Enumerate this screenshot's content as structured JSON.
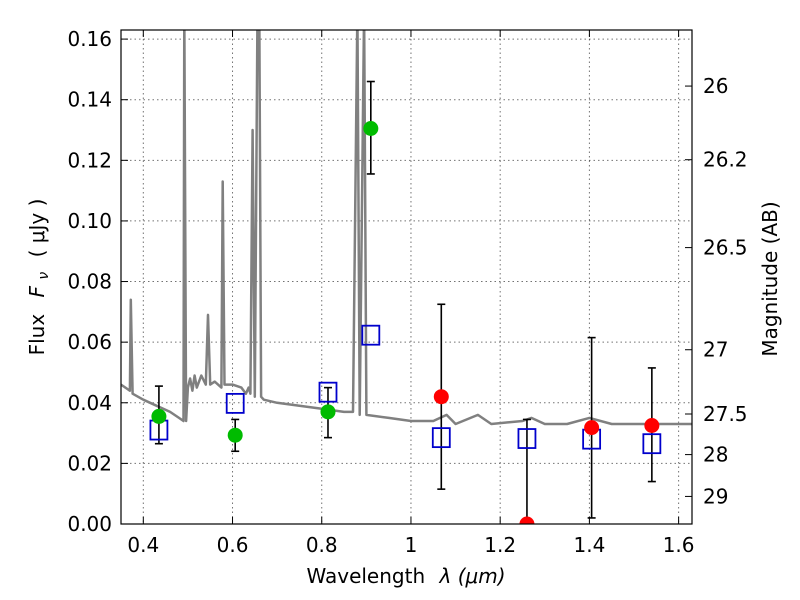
{
  "chart_data": {
    "type": "scatter",
    "xlabel_text": "Wavelength",
    "xlabel_math": "λ (μm)",
    "ylabel_text": "Flux",
    "ylabel_math": "F",
    "ylabel_sub": "ν",
    "ylabel_unit": "( μJy )",
    "y2label": "Magnitude (AB)",
    "xlim": [
      0.35,
      1.63
    ],
    "ylim": [
      0.0,
      0.163
    ],
    "grid": true,
    "x_ticks": [
      0.4,
      0.6,
      0.8,
      1.0,
      1.2,
      1.4,
      1.6
    ],
    "x_tick_labels": [
      "0.4",
      "0.6",
      "0.8",
      "1",
      "1.2",
      "1.4",
      "1.6"
    ],
    "y_ticks": [
      0.0,
      0.02,
      0.04,
      0.06,
      0.08,
      0.1,
      0.12,
      0.14,
      0.16
    ],
    "y_tick_labels": [
      "0.00",
      "0.02",
      "0.04",
      "0.06",
      "0.08",
      "0.10",
      "0.12",
      "0.14",
      "0.16"
    ],
    "y2_ticks": [
      {
        "label": "26",
        "flux": 0.1445
      },
      {
        "label": "26.2",
        "flux": 0.1202
      },
      {
        "label": "26.5",
        "flux": 0.0912
      },
      {
        "label": "27",
        "flux": 0.0575
      },
      {
        "label": "27.5",
        "flux": 0.0363
      },
      {
        "label": "28",
        "flux": 0.0229
      },
      {
        "label": "29",
        "flux": 0.0091
      }
    ],
    "colors": {
      "spectrum": "#808080",
      "green_points": "#00bb00",
      "red_points": "#ff0000",
      "model_squares": "#0000cc",
      "errorbar": "#000000"
    },
    "series": [
      {
        "kind": "spectrum",
        "points": [
          [
            0.35,
            0.046
          ],
          [
            0.37,
            0.044
          ],
          [
            0.372,
            0.074
          ],
          [
            0.376,
            0.043
          ],
          [
            0.4,
            0.041
          ],
          [
            0.43,
            0.039
          ],
          [
            0.46,
            0.037
          ],
          [
            0.48,
            0.035
          ],
          [
            0.49,
            0.034
          ],
          [
            0.492,
            0.17
          ],
          [
            0.496,
            0.034
          ],
          [
            0.5,
            0.045
          ],
          [
            0.505,
            0.048
          ],
          [
            0.51,
            0.044
          ],
          [
            0.515,
            0.049
          ],
          [
            0.52,
            0.045
          ],
          [
            0.53,
            0.049
          ],
          [
            0.54,
            0.046
          ],
          [
            0.545,
            0.069
          ],
          [
            0.55,
            0.046
          ],
          [
            0.56,
            0.047
          ],
          [
            0.575,
            0.045
          ],
          [
            0.578,
            0.113
          ],
          [
            0.582,
            0.046
          ],
          [
            0.6,
            0.046
          ],
          [
            0.62,
            0.045
          ],
          [
            0.63,
            0.043
          ],
          [
            0.636,
            0.045
          ],
          [
            0.64,
            0.043
          ],
          [
            0.645,
            0.13
          ],
          [
            0.65,
            0.042
          ],
          [
            0.656,
            0.17
          ],
          [
            0.66,
            0.17
          ],
          [
            0.664,
            0.042
          ],
          [
            0.67,
            0.041
          ],
          [
            0.7,
            0.04
          ],
          [
            0.75,
            0.039
          ],
          [
            0.8,
            0.038
          ],
          [
            0.85,
            0.037
          ],
          [
            0.87,
            0.037
          ],
          [
            0.88,
            0.17
          ],
          [
            0.885,
            0.036
          ],
          [
            0.895,
            0.17
          ],
          [
            0.9,
            0.036
          ],
          [
            0.95,
            0.035
          ],
          [
            1.0,
            0.034
          ],
          [
            1.05,
            0.034
          ],
          [
            1.08,
            0.036
          ],
          [
            1.1,
            0.033
          ],
          [
            1.15,
            0.036
          ],
          [
            1.18,
            0.033
          ],
          [
            1.25,
            0.034
          ],
          [
            1.27,
            0.035
          ],
          [
            1.3,
            0.033
          ],
          [
            1.35,
            0.033
          ],
          [
            1.4,
            0.035
          ],
          [
            1.45,
            0.033
          ],
          [
            1.5,
            0.033
          ],
          [
            1.55,
            0.033
          ],
          [
            1.63,
            0.033
          ]
        ]
      },
      {
        "kind": "observed_green",
        "points": [
          {
            "x": 0.435,
            "y": 0.0355,
            "err_lo": 0.0265,
            "err_hi": 0.0455
          },
          {
            "x": 0.606,
            "y": 0.0293,
            "err_lo": 0.024,
            "err_hi": 0.0345
          },
          {
            "x": 0.814,
            "y": 0.037,
            "err_lo": 0.0285,
            "err_hi": 0.045
          },
          {
            "x": 0.91,
            "y": 0.1305,
            "err_lo": 0.1155,
            "err_hi": 0.146
          }
        ]
      },
      {
        "kind": "observed_red",
        "points": [
          {
            "x": 1.068,
            "y": 0.042,
            "err_lo": 0.0115,
            "err_hi": 0.0725
          },
          {
            "x": 1.26,
            "y": 0.0,
            "err_lo": 0.0,
            "err_hi": 0.0345
          },
          {
            "x": 1.405,
            "y": 0.0318,
            "err_lo": 0.002,
            "err_hi": 0.0615
          },
          {
            "x": 1.54,
            "y": 0.0325,
            "err_lo": 0.014,
            "err_hi": 0.0515
          }
        ]
      },
      {
        "kind": "model_squares",
        "points": [
          {
            "x": 0.435,
            "y": 0.031
          },
          {
            "x": 0.606,
            "y": 0.0398
          },
          {
            "x": 0.814,
            "y": 0.0435
          },
          {
            "x": 0.91,
            "y": 0.0623
          },
          {
            "x": 1.068,
            "y": 0.0285
          },
          {
            "x": 1.26,
            "y": 0.0282
          },
          {
            "x": 1.405,
            "y": 0.028
          },
          {
            "x": 1.54,
            "y": 0.0265
          }
        ]
      }
    ]
  }
}
